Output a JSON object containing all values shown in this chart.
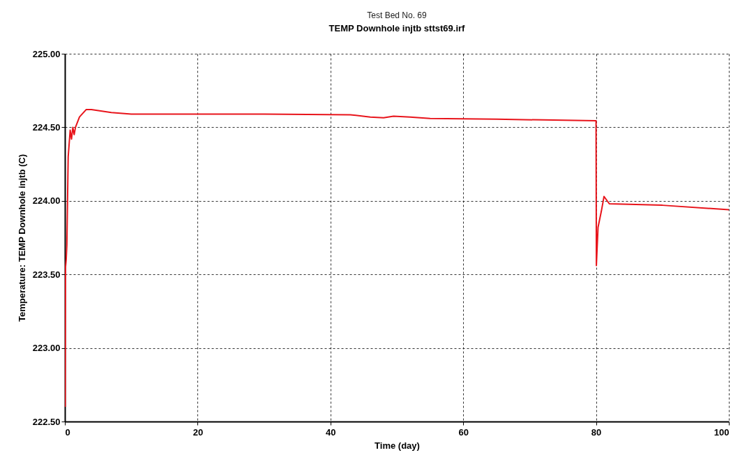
{
  "chart_data": {
    "type": "line",
    "title": "Test Bed No. 69",
    "subtitle": "TEMP Downhole injtb sttst69.irf",
    "xlabel": "Time (day)",
    "ylabel": "Temperature: TEMP Downhole injtb (C)",
    "x": [
      0.05,
      0.1,
      0.2,
      0.3,
      0.5,
      0.8,
      1.0,
      1.2,
      1.4,
      1.6,
      2.2,
      3.2,
      4,
      7,
      10,
      30,
      43,
      46,
      48,
      49.5,
      52,
      55,
      65,
      72,
      80,
      80.05,
      80.3,
      80.8,
      81.2,
      82,
      90,
      100
    ],
    "series": [
      {
        "color": "#e8141b",
        "values": [
          222.6,
          223.55,
          223.6,
          223.7,
          224.3,
          224.48,
          224.42,
          224.5,
          224.45,
          224.5,
          224.57,
          224.62,
          224.62,
          224.6,
          224.59,
          224.59,
          224.585,
          224.57,
          224.565,
          224.575,
          224.57,
          224.56,
          224.555,
          224.55,
          224.545,
          223.56,
          223.82,
          223.93,
          224.03,
          223.98,
          223.97,
          223.94
        ]
      }
    ],
    "xlim": [
      0,
      100
    ],
    "xticks": [
      0,
      20,
      40,
      60,
      80,
      100
    ],
    "ylim": [
      222.5,
      225
    ],
    "yticks": [
      {
        "value": 222.5,
        "label": "222.50"
      },
      {
        "value": 223,
        "label": "223.00"
      },
      {
        "value": 223.5,
        "label": "223.50"
      },
      {
        "value": 224,
        "label": "224.00"
      },
      {
        "value": 224.5,
        "label": "224.50"
      },
      {
        "value": 225,
        "label": "225.00"
      }
    ],
    "grid": true,
    "marker": "none",
    "line_style": "solid"
  }
}
